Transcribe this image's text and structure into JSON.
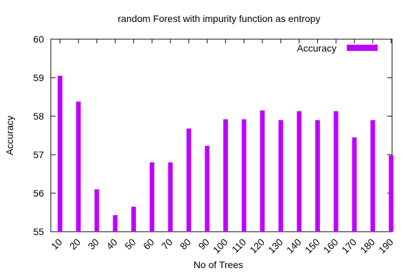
{
  "chart_data": {
    "type": "bar",
    "title": "random Forest with impurity function as entropy",
    "xlabel": "No of Trees",
    "ylabel": "Accuracy",
    "ylim": [
      55,
      60
    ],
    "yticks": [
      55,
      56,
      57,
      58,
      59,
      60
    ],
    "grid": false,
    "legend_position": "top-right",
    "categories": [
      "10",
      "20",
      "30",
      "40",
      "50",
      "60",
      "70",
      "80",
      "90",
      "100",
      "110",
      "120",
      "130",
      "140",
      "150",
      "160",
      "170",
      "180",
      "190"
    ],
    "series": [
      {
        "name": "Accuracy",
        "color": "#bf00ff",
        "values": [
          59.05,
          58.38,
          56.1,
          55.43,
          55.65,
          56.8,
          56.8,
          57.68,
          57.23,
          57.92,
          57.92,
          58.15,
          57.9,
          58.13,
          57.9,
          58.13,
          57.45,
          57.9,
          56.98
        ]
      }
    ]
  }
}
